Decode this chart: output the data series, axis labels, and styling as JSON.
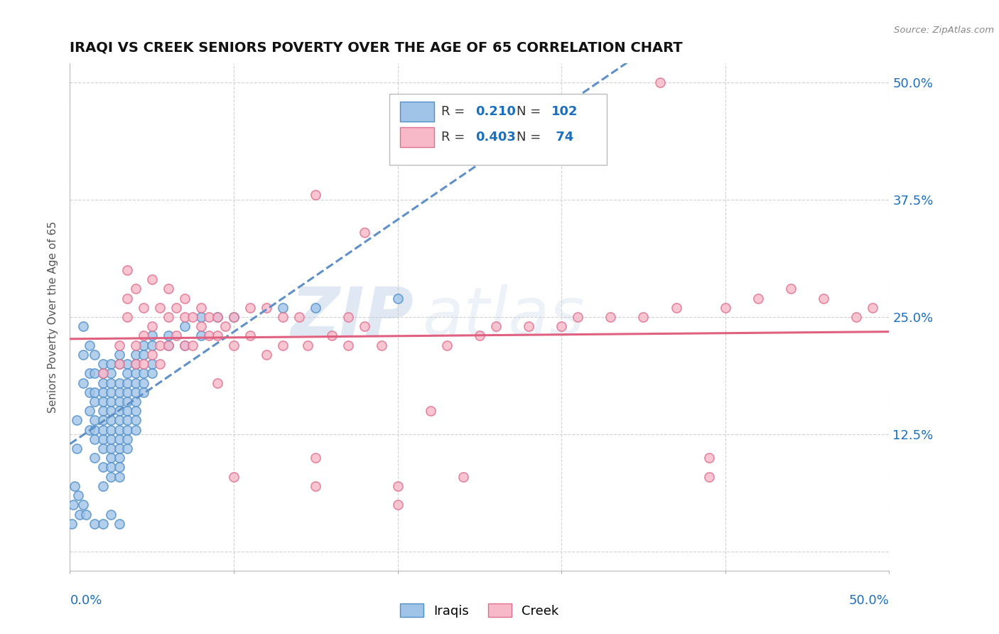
{
  "title": "IRAQI VS CREEK SENIORS POVERTY OVER THE AGE OF 65 CORRELATION CHART",
  "source_text": "Source: ZipAtlas.com",
  "ylabel": "Seniors Poverty Over the Age of 65",
  "watermark_zip": "ZIP",
  "watermark_atlas": "atlas",
  "xlim": [
    0,
    0.5
  ],
  "ylim": [
    -0.02,
    0.52
  ],
  "xticks": [
    0.0,
    0.1,
    0.2,
    0.3,
    0.4,
    0.5
  ],
  "yticks": [
    0.0,
    0.125,
    0.25,
    0.375,
    0.5
  ],
  "xticklabels": [
    "0.0%",
    "",
    "",
    "",
    "",
    "50.0%"
  ],
  "right_yticklabels": [
    "",
    "12.5%",
    "25.0%",
    "37.5%",
    "50.0%"
  ],
  "grid_color": "#cccccc",
  "background_color": "#ffffff",
  "title_color": "#111111",
  "title_fontsize": 14,
  "axis_label_color": "#555555",
  "blue_color": "#1a6fbf",
  "iraqis_scatter_color": "#a0c4e8",
  "creek_scatter_color": "#f7b8c8",
  "iraqis_edge_color": "#5090c8",
  "creek_edge_color": "#e07090",
  "iraqis_line_color": "#6090c8",
  "creek_line_color": "#e06080",
  "marker_size": 90,
  "marker_edge_width": 1.2,
  "iraqis_points": [
    [
      0.004,
      0.14
    ],
    [
      0.004,
      0.11
    ],
    [
      0.008,
      0.24
    ],
    [
      0.008,
      0.21
    ],
    [
      0.008,
      0.18
    ],
    [
      0.012,
      0.22
    ],
    [
      0.012,
      0.19
    ],
    [
      0.012,
      0.17
    ],
    [
      0.012,
      0.15
    ],
    [
      0.012,
      0.13
    ],
    [
      0.015,
      0.21
    ],
    [
      0.015,
      0.19
    ],
    [
      0.015,
      0.17
    ],
    [
      0.015,
      0.16
    ],
    [
      0.015,
      0.14
    ],
    [
      0.015,
      0.13
    ],
    [
      0.015,
      0.12
    ],
    [
      0.015,
      0.1
    ],
    [
      0.02,
      0.2
    ],
    [
      0.02,
      0.19
    ],
    [
      0.02,
      0.18
    ],
    [
      0.02,
      0.17
    ],
    [
      0.02,
      0.16
    ],
    [
      0.02,
      0.15
    ],
    [
      0.02,
      0.14
    ],
    [
      0.02,
      0.13
    ],
    [
      0.02,
      0.12
    ],
    [
      0.02,
      0.11
    ],
    [
      0.02,
      0.09
    ],
    [
      0.02,
      0.07
    ],
    [
      0.025,
      0.2
    ],
    [
      0.025,
      0.19
    ],
    [
      0.025,
      0.18
    ],
    [
      0.025,
      0.17
    ],
    [
      0.025,
      0.16
    ],
    [
      0.025,
      0.15
    ],
    [
      0.025,
      0.14
    ],
    [
      0.025,
      0.13
    ],
    [
      0.025,
      0.12
    ],
    [
      0.025,
      0.11
    ],
    [
      0.025,
      0.1
    ],
    [
      0.025,
      0.09
    ],
    [
      0.025,
      0.08
    ],
    [
      0.03,
      0.21
    ],
    [
      0.03,
      0.2
    ],
    [
      0.03,
      0.18
    ],
    [
      0.03,
      0.17
    ],
    [
      0.03,
      0.16
    ],
    [
      0.03,
      0.15
    ],
    [
      0.03,
      0.14
    ],
    [
      0.03,
      0.13
    ],
    [
      0.03,
      0.12
    ],
    [
      0.03,
      0.11
    ],
    [
      0.03,
      0.1
    ],
    [
      0.03,
      0.09
    ],
    [
      0.03,
      0.08
    ],
    [
      0.035,
      0.2
    ],
    [
      0.035,
      0.19
    ],
    [
      0.035,
      0.18
    ],
    [
      0.035,
      0.17
    ],
    [
      0.035,
      0.16
    ],
    [
      0.035,
      0.15
    ],
    [
      0.035,
      0.14
    ],
    [
      0.035,
      0.13
    ],
    [
      0.035,
      0.12
    ],
    [
      0.035,
      0.11
    ],
    [
      0.04,
      0.21
    ],
    [
      0.04,
      0.2
    ],
    [
      0.04,
      0.19
    ],
    [
      0.04,
      0.18
    ],
    [
      0.04,
      0.17
    ],
    [
      0.04,
      0.16
    ],
    [
      0.04,
      0.15
    ],
    [
      0.04,
      0.14
    ],
    [
      0.04,
      0.13
    ],
    [
      0.045,
      0.22
    ],
    [
      0.045,
      0.21
    ],
    [
      0.045,
      0.19
    ],
    [
      0.045,
      0.18
    ],
    [
      0.045,
      0.17
    ],
    [
      0.05,
      0.23
    ],
    [
      0.05,
      0.22
    ],
    [
      0.05,
      0.2
    ],
    [
      0.05,
      0.19
    ],
    [
      0.06,
      0.23
    ],
    [
      0.06,
      0.22
    ],
    [
      0.07,
      0.24
    ],
    [
      0.07,
      0.22
    ],
    [
      0.08,
      0.25
    ],
    [
      0.08,
      0.23
    ],
    [
      0.09,
      0.25
    ],
    [
      0.1,
      0.25
    ],
    [
      0.13,
      0.26
    ],
    [
      0.15,
      0.26
    ],
    [
      0.2,
      0.27
    ],
    [
      0.001,
      0.03
    ],
    [
      0.002,
      0.05
    ],
    [
      0.003,
      0.07
    ],
    [
      0.005,
      0.06
    ],
    [
      0.006,
      0.04
    ],
    [
      0.008,
      0.05
    ],
    [
      0.01,
      0.04
    ],
    [
      0.015,
      0.03
    ],
    [
      0.02,
      0.03
    ],
    [
      0.025,
      0.04
    ],
    [
      0.03,
      0.03
    ]
  ],
  "creek_points": [
    [
      0.02,
      0.19
    ],
    [
      0.03,
      0.22
    ],
    [
      0.03,
      0.2
    ],
    [
      0.035,
      0.3
    ],
    [
      0.035,
      0.27
    ],
    [
      0.035,
      0.25
    ],
    [
      0.04,
      0.28
    ],
    [
      0.04,
      0.22
    ],
    [
      0.04,
      0.2
    ],
    [
      0.045,
      0.26
    ],
    [
      0.045,
      0.23
    ],
    [
      0.045,
      0.2
    ],
    [
      0.05,
      0.29
    ],
    [
      0.05,
      0.24
    ],
    [
      0.05,
      0.21
    ],
    [
      0.055,
      0.26
    ],
    [
      0.055,
      0.22
    ],
    [
      0.055,
      0.2
    ],
    [
      0.06,
      0.28
    ],
    [
      0.06,
      0.25
    ],
    [
      0.06,
      0.22
    ],
    [
      0.065,
      0.26
    ],
    [
      0.065,
      0.23
    ],
    [
      0.07,
      0.27
    ],
    [
      0.07,
      0.25
    ],
    [
      0.07,
      0.22
    ],
    [
      0.075,
      0.25
    ],
    [
      0.075,
      0.22
    ],
    [
      0.08,
      0.26
    ],
    [
      0.08,
      0.24
    ],
    [
      0.085,
      0.25
    ],
    [
      0.085,
      0.23
    ],
    [
      0.09,
      0.25
    ],
    [
      0.09,
      0.23
    ],
    [
      0.09,
      0.18
    ],
    [
      0.095,
      0.24
    ],
    [
      0.1,
      0.25
    ],
    [
      0.1,
      0.22
    ],
    [
      0.1,
      0.08
    ],
    [
      0.11,
      0.26
    ],
    [
      0.11,
      0.23
    ],
    [
      0.12,
      0.26
    ],
    [
      0.12,
      0.21
    ],
    [
      0.13,
      0.25
    ],
    [
      0.13,
      0.22
    ],
    [
      0.14,
      0.25
    ],
    [
      0.145,
      0.22
    ],
    [
      0.15,
      0.1
    ],
    [
      0.15,
      0.07
    ],
    [
      0.16,
      0.23
    ],
    [
      0.17,
      0.25
    ],
    [
      0.17,
      0.22
    ],
    [
      0.18,
      0.24
    ],
    [
      0.19,
      0.22
    ],
    [
      0.2,
      0.07
    ],
    [
      0.2,
      0.05
    ],
    [
      0.22,
      0.15
    ],
    [
      0.23,
      0.22
    ],
    [
      0.24,
      0.08
    ],
    [
      0.25,
      0.23
    ],
    [
      0.26,
      0.24
    ],
    [
      0.28,
      0.24
    ],
    [
      0.3,
      0.24
    ],
    [
      0.31,
      0.25
    ],
    [
      0.33,
      0.25
    ],
    [
      0.35,
      0.25
    ],
    [
      0.37,
      0.26
    ],
    [
      0.39,
      0.1
    ],
    [
      0.39,
      0.08
    ],
    [
      0.4,
      0.26
    ],
    [
      0.42,
      0.27
    ],
    [
      0.44,
      0.28
    ],
    [
      0.46,
      0.27
    ],
    [
      0.48,
      0.25
    ],
    [
      0.49,
      0.26
    ],
    [
      0.36,
      0.5
    ],
    [
      0.15,
      0.38
    ],
    [
      0.18,
      0.34
    ]
  ]
}
